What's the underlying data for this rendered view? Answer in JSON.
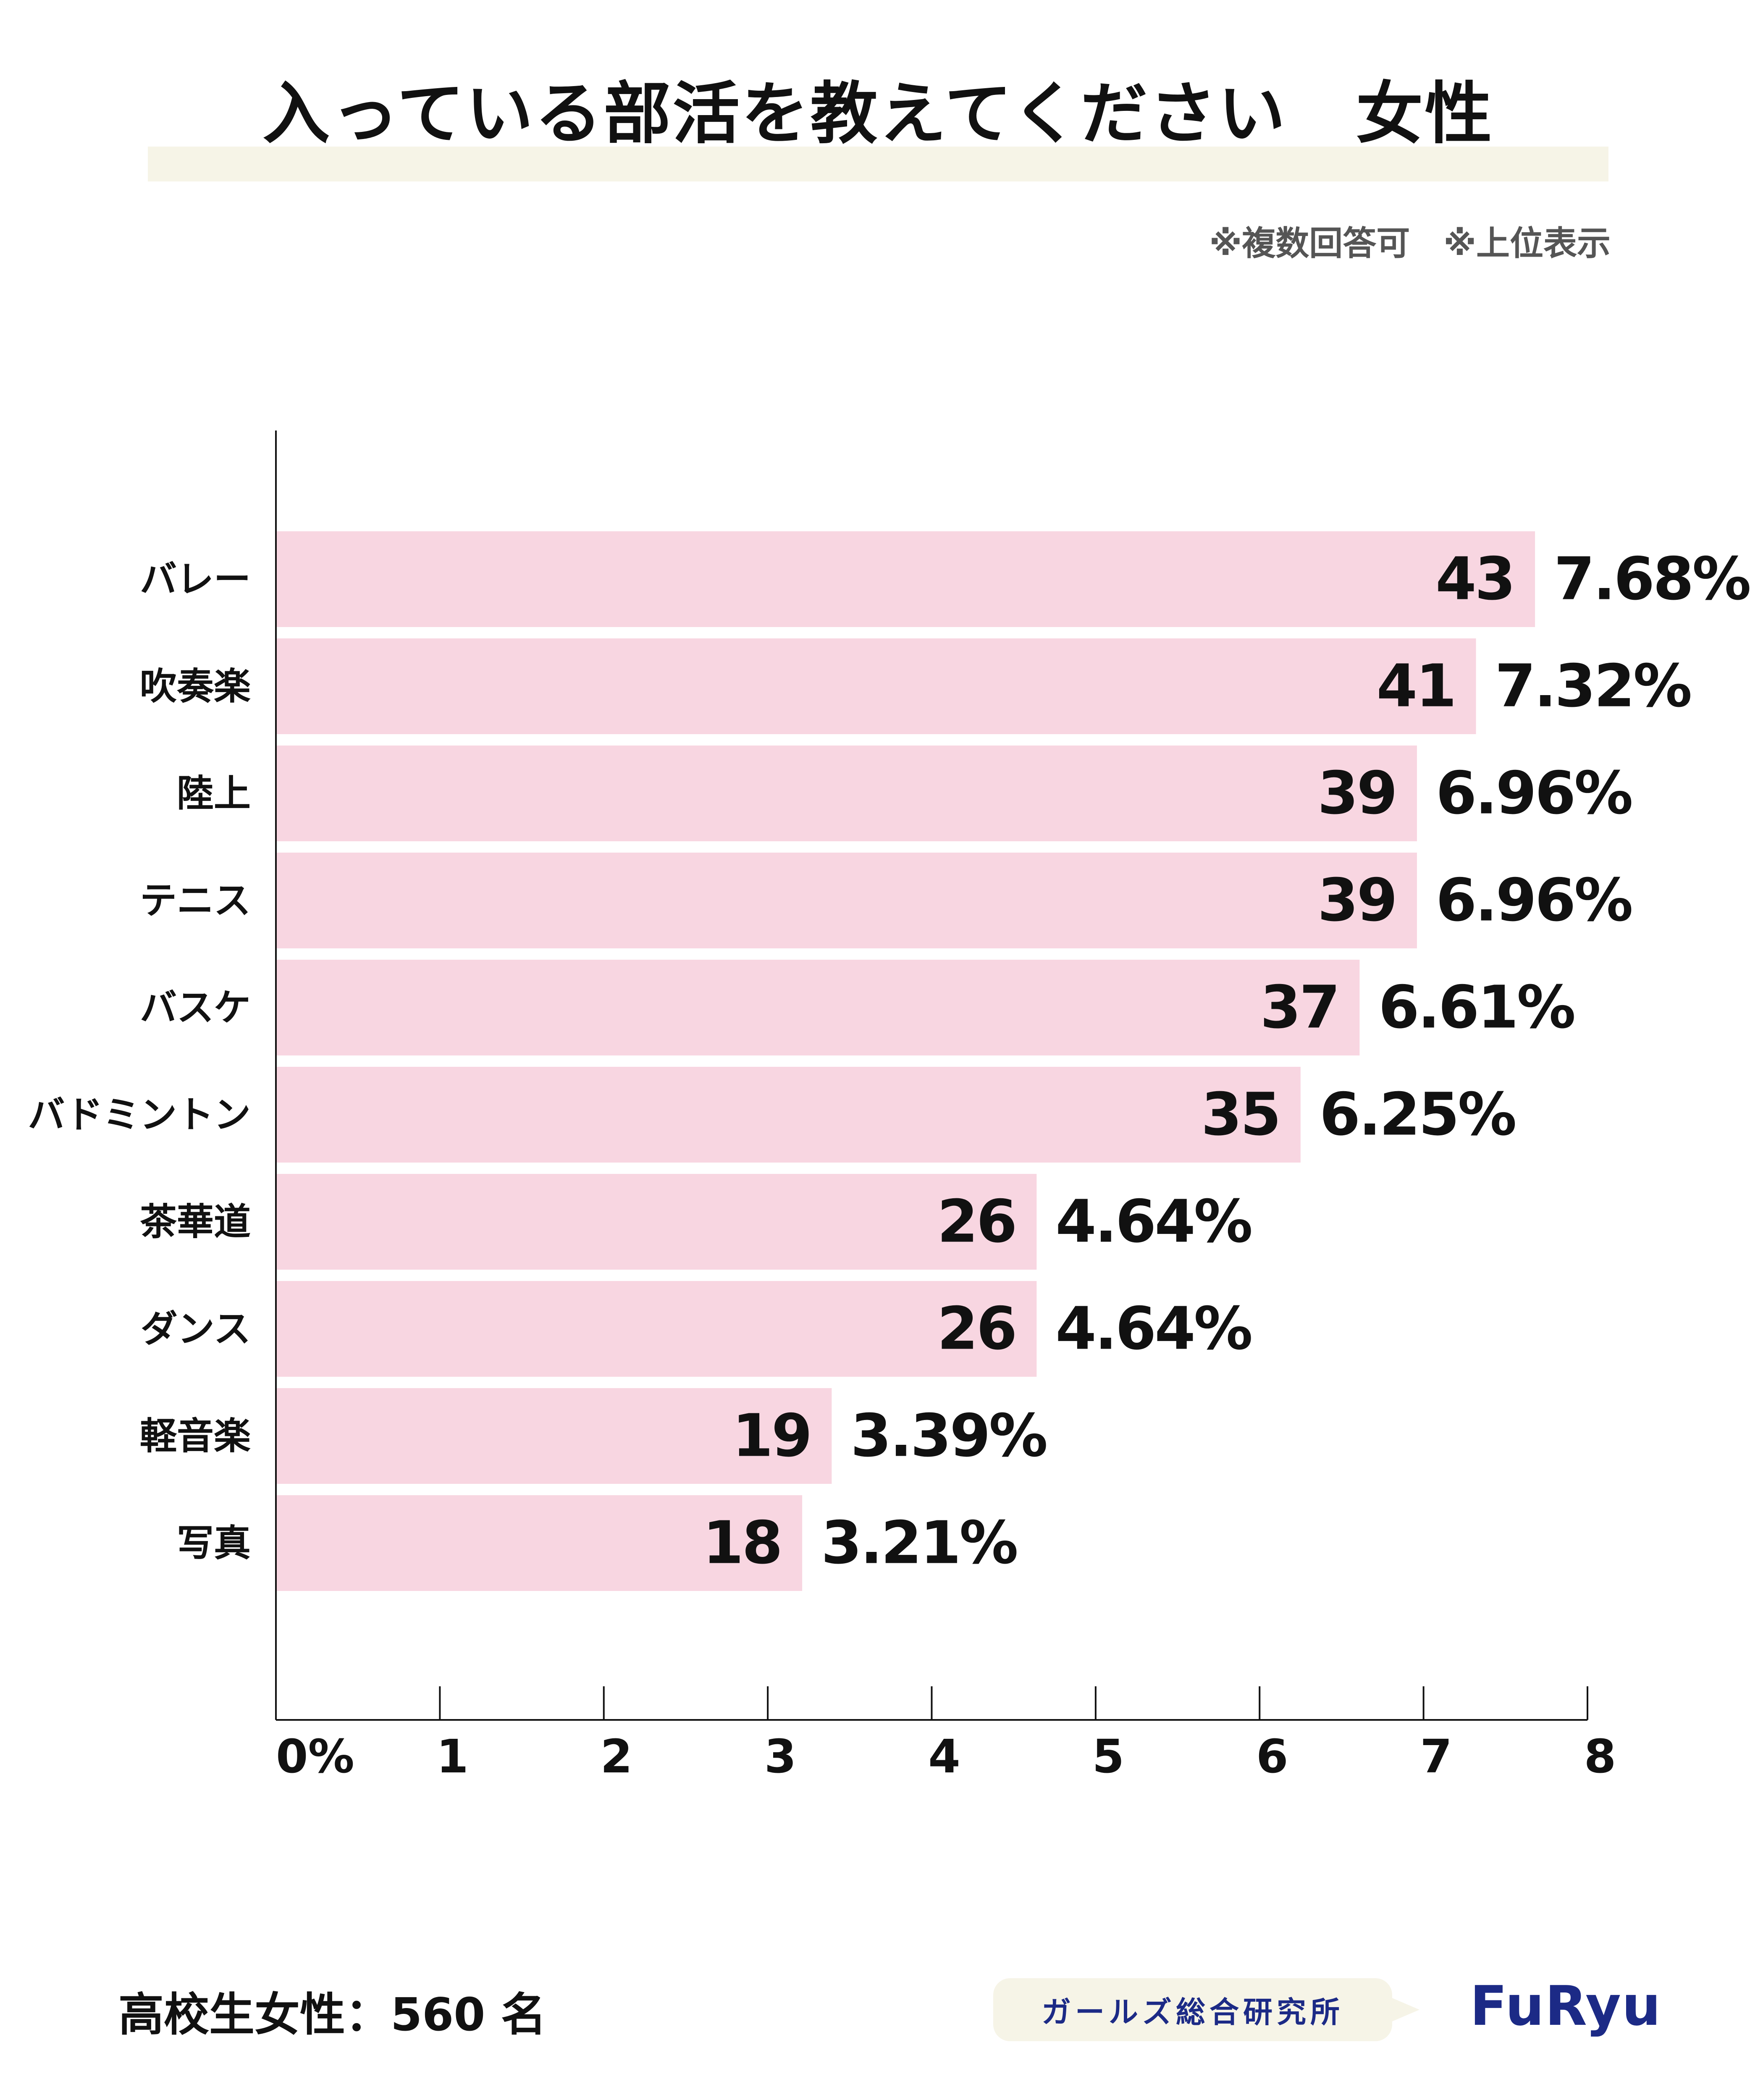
{
  "header": {
    "title": "入っている部活を教えてください　女性",
    "note": "※複数回答可　※上位表示"
  },
  "chart_data": {
    "type": "bar",
    "orientation": "horizontal",
    "categories": [
      "バレー",
      "吹奏楽",
      "陸上",
      "テニス",
      "バスケ",
      "バドミントン",
      "茶華道",
      "ダンス",
      "軽音楽",
      "写真"
    ],
    "counts": [
      43,
      41,
      39,
      39,
      37,
      35,
      26,
      26,
      19,
      18
    ],
    "values": [
      7.68,
      7.32,
      6.96,
      6.96,
      6.61,
      6.25,
      4.64,
      4.64,
      3.39,
      3.21
    ],
    "value_labels": [
      "7.68%",
      "7.32%",
      "6.96%",
      "6.96%",
      "6.61%",
      "6.25%",
      "4.64%",
      "4.64%",
      "3.39%",
      "3.21%"
    ],
    "xlim": [
      0,
      8
    ],
    "x_ticks": [
      "0%",
      "1",
      "2",
      "3",
      "4",
      "5",
      "6",
      "7",
      "8"
    ],
    "bar_color": "#f8d6e1",
    "grid": false,
    "legend": false
  },
  "footer": {
    "sample": "高校生女性：560 名",
    "org": "ガールズ総合研究所",
    "logo": "FuRyu"
  },
  "colors": {
    "band": "#f6f4e7",
    "brand": "#1c2a86",
    "text": "#111111"
  }
}
